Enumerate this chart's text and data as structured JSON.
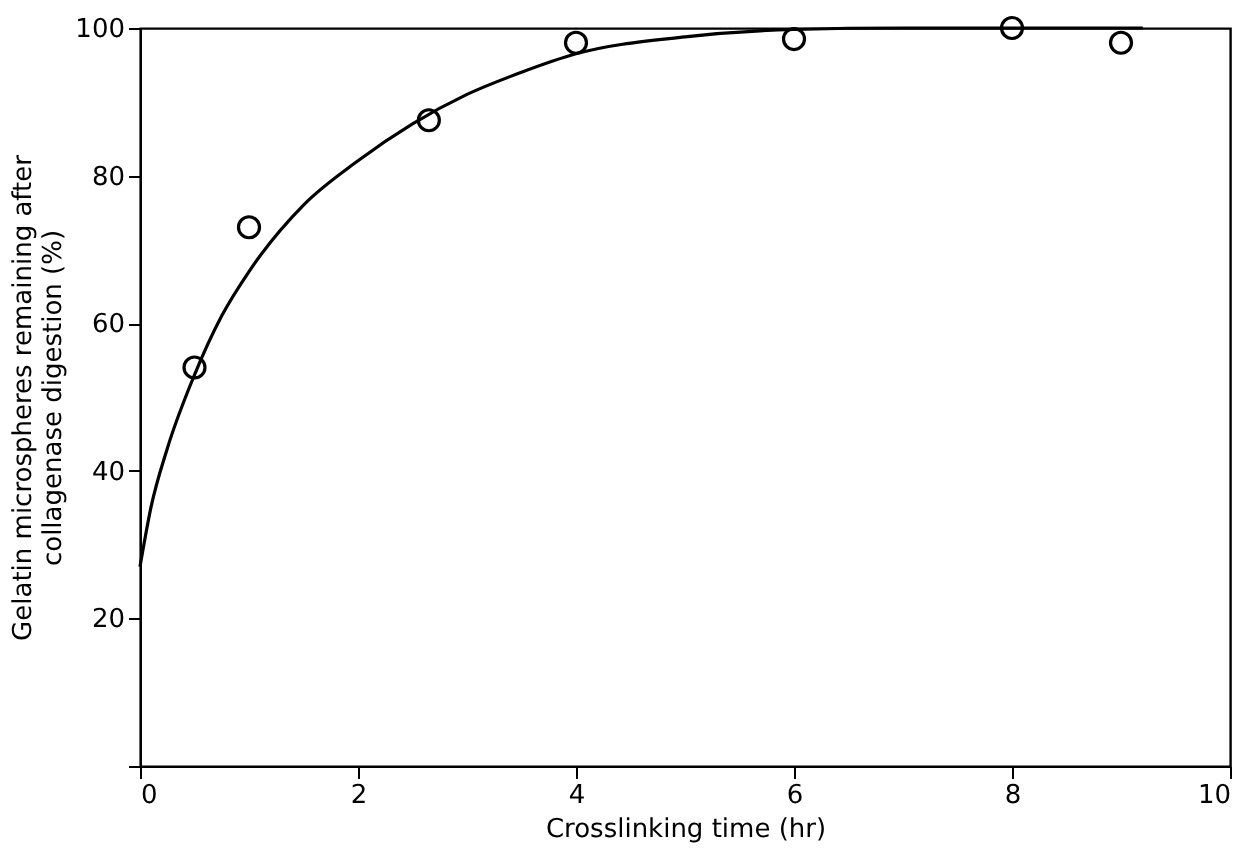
{
  "chart_data": {
    "type": "scatter",
    "xlabel": "Crosslinking time (hr)",
    "ylabel": "Gelatin microspheres remaining after collagenase digestion (%)",
    "xlim": [
      0,
      10
    ],
    "ylim": [
      0,
      100
    ],
    "xticks": [
      0,
      2,
      4,
      6,
      8,
      10
    ],
    "yticks": [
      {
        "value": 0,
        "label": null
      },
      20,
      40,
      60,
      80,
      100
    ],
    "grid": false,
    "marker": "circle",
    "series": [
      {
        "color": "#000000",
        "x": [
          0.5,
          1.0,
          2.65,
          4.0,
          6.0,
          8.0,
          9.0
        ],
        "values": [
          54,
          73,
          87.5,
          98,
          98.5,
          100,
          98
        ]
      },
      {
        "type": "line",
        "color": "#000000",
        "marker": "none",
        "x": [
          0,
          0.1,
          0.25,
          0.5,
          0.75,
          1,
          1.5,
          2,
          2.5,
          3,
          3.5,
          4,
          5,
          6,
          7,
          8,
          9.2
        ],
        "values": [
          27,
          35,
          43,
          53,
          61,
          67,
          76,
          82,
          87,
          91,
          94,
          96.5,
          98.8,
          99.8,
          100,
          100,
          100
        ]
      }
    ]
  }
}
